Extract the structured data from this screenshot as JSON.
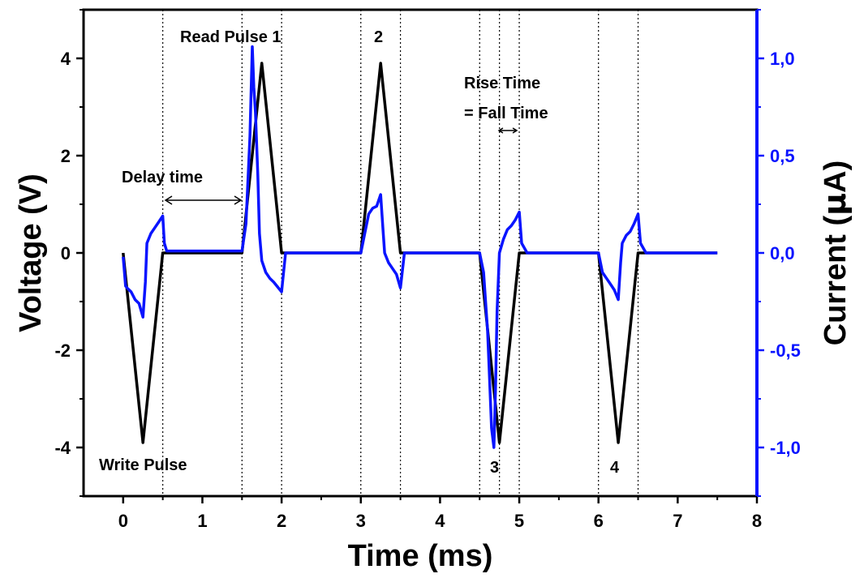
{
  "chart_data": {
    "type": "line",
    "title": "",
    "xlabel": "Time (ms)",
    "ylabel_left": "Voltage (V)",
    "ylabel_right_prefix": "Current (",
    "ylabel_right_mu": "μ",
    "ylabel_right_suffix": "A)",
    "xlim": [
      -0.5,
      8
    ],
    "ylim_left": [
      -5,
      5
    ],
    "ylim_right": [
      -1.25,
      1.25
    ],
    "xticks": [
      0,
      1,
      2,
      3,
      4,
      5,
      6,
      7,
      8
    ],
    "xtick_labels": [
      "0",
      "1",
      "2",
      "3",
      "4",
      "5",
      "6",
      "7",
      "8"
    ],
    "yticks_left": [
      -4,
      -2,
      0,
      2,
      4
    ],
    "ytick_labels_left": [
      "-4",
      "-2",
      "0",
      "2",
      "4"
    ],
    "yticks_right": [
      -1.0,
      -0.5,
      0.0,
      0.5,
      1.0
    ],
    "ytick_labels_right": [
      "-1,0",
      "-0,5",
      "0,0",
      "0,5",
      "1,0"
    ],
    "colors": {
      "voltage": "#000000",
      "current": "#0a14ff",
      "axis": "#000000",
      "right_axis": "#0a14ff"
    },
    "series": [
      {
        "axis": "left",
        "x": [
          0,
          0.25,
          0.5,
          1.5,
          1.75,
          2.0,
          3.0,
          3.25,
          3.5,
          4.5,
          4.75,
          5.0,
          6.0,
          6.25,
          6.5,
          7.5
        ],
        "y": [
          0,
          -3.9,
          0,
          0,
          3.9,
          0,
          0,
          3.9,
          0,
          0,
          -3.9,
          0,
          0,
          -3.9,
          0,
          0
        ]
      },
      {
        "axis": "right",
        "x": [
          0,
          0.03,
          0.05,
          0.1,
          0.15,
          0.2,
          0.25,
          0.28,
          0.3,
          0.35,
          0.4,
          0.45,
          0.5,
          0.52,
          0.55,
          1.5,
          1.55,
          1.6,
          1.63,
          1.65,
          1.67,
          1.7,
          1.72,
          1.75,
          1.8,
          1.85,
          1.9,
          2.0,
          2.05,
          3.0,
          3.05,
          3.1,
          3.15,
          3.2,
          3.25,
          3.28,
          3.3,
          3.35,
          3.4,
          3.45,
          3.5,
          3.55,
          4.5,
          4.55,
          4.6,
          4.62,
          4.65,
          4.68,
          4.7,
          4.72,
          4.75,
          4.8,
          4.85,
          4.9,
          4.95,
          5.0,
          5.03,
          5.1,
          6.0,
          6.05,
          6.1,
          6.15,
          6.2,
          6.25,
          6.28,
          6.3,
          6.35,
          6.4,
          6.45,
          6.5,
          6.53,
          6.6,
          7.5
        ],
        "y": [
          -0.02,
          -0.17,
          -0.18,
          -0.2,
          -0.24,
          -0.26,
          -0.33,
          -0.15,
          0.05,
          0.1,
          0.13,
          0.16,
          0.19,
          0.05,
          0.01,
          0.01,
          0.15,
          0.6,
          1.06,
          0.85,
          0.72,
          0.4,
          0.1,
          -0.04,
          -0.1,
          -0.13,
          -0.15,
          -0.2,
          0.0,
          0.0,
          0.1,
          0.2,
          0.23,
          0.24,
          0.3,
          0.12,
          0.0,
          -0.05,
          -0.08,
          -0.11,
          -0.18,
          0.0,
          0.0,
          -0.1,
          -0.4,
          -0.6,
          -0.9,
          -1.0,
          -0.7,
          -0.3,
          0.0,
          0.07,
          0.12,
          0.14,
          0.17,
          0.21,
          0.05,
          0.0,
          0.0,
          -0.1,
          -0.13,
          -0.16,
          -0.19,
          -0.24,
          -0.05,
          0.05,
          0.09,
          0.11,
          0.15,
          0.2,
          0.05,
          0.0,
          0.0
        ]
      }
    ],
    "vlines": [
      0.5,
      1.5,
      2.0,
      3.0,
      3.5,
      4.5,
      4.75,
      5.0,
      6.0,
      6.5
    ],
    "annotations": {
      "read_pulse": "Read Pulse 1",
      "pulse_2": "2",
      "pulse_3": "3",
      "pulse_4": "4",
      "write_pulse": "Write Pulse",
      "delay_time": "Delay time",
      "rise_time": "Rise Time",
      "fall_time": "= Fall Time"
    }
  }
}
